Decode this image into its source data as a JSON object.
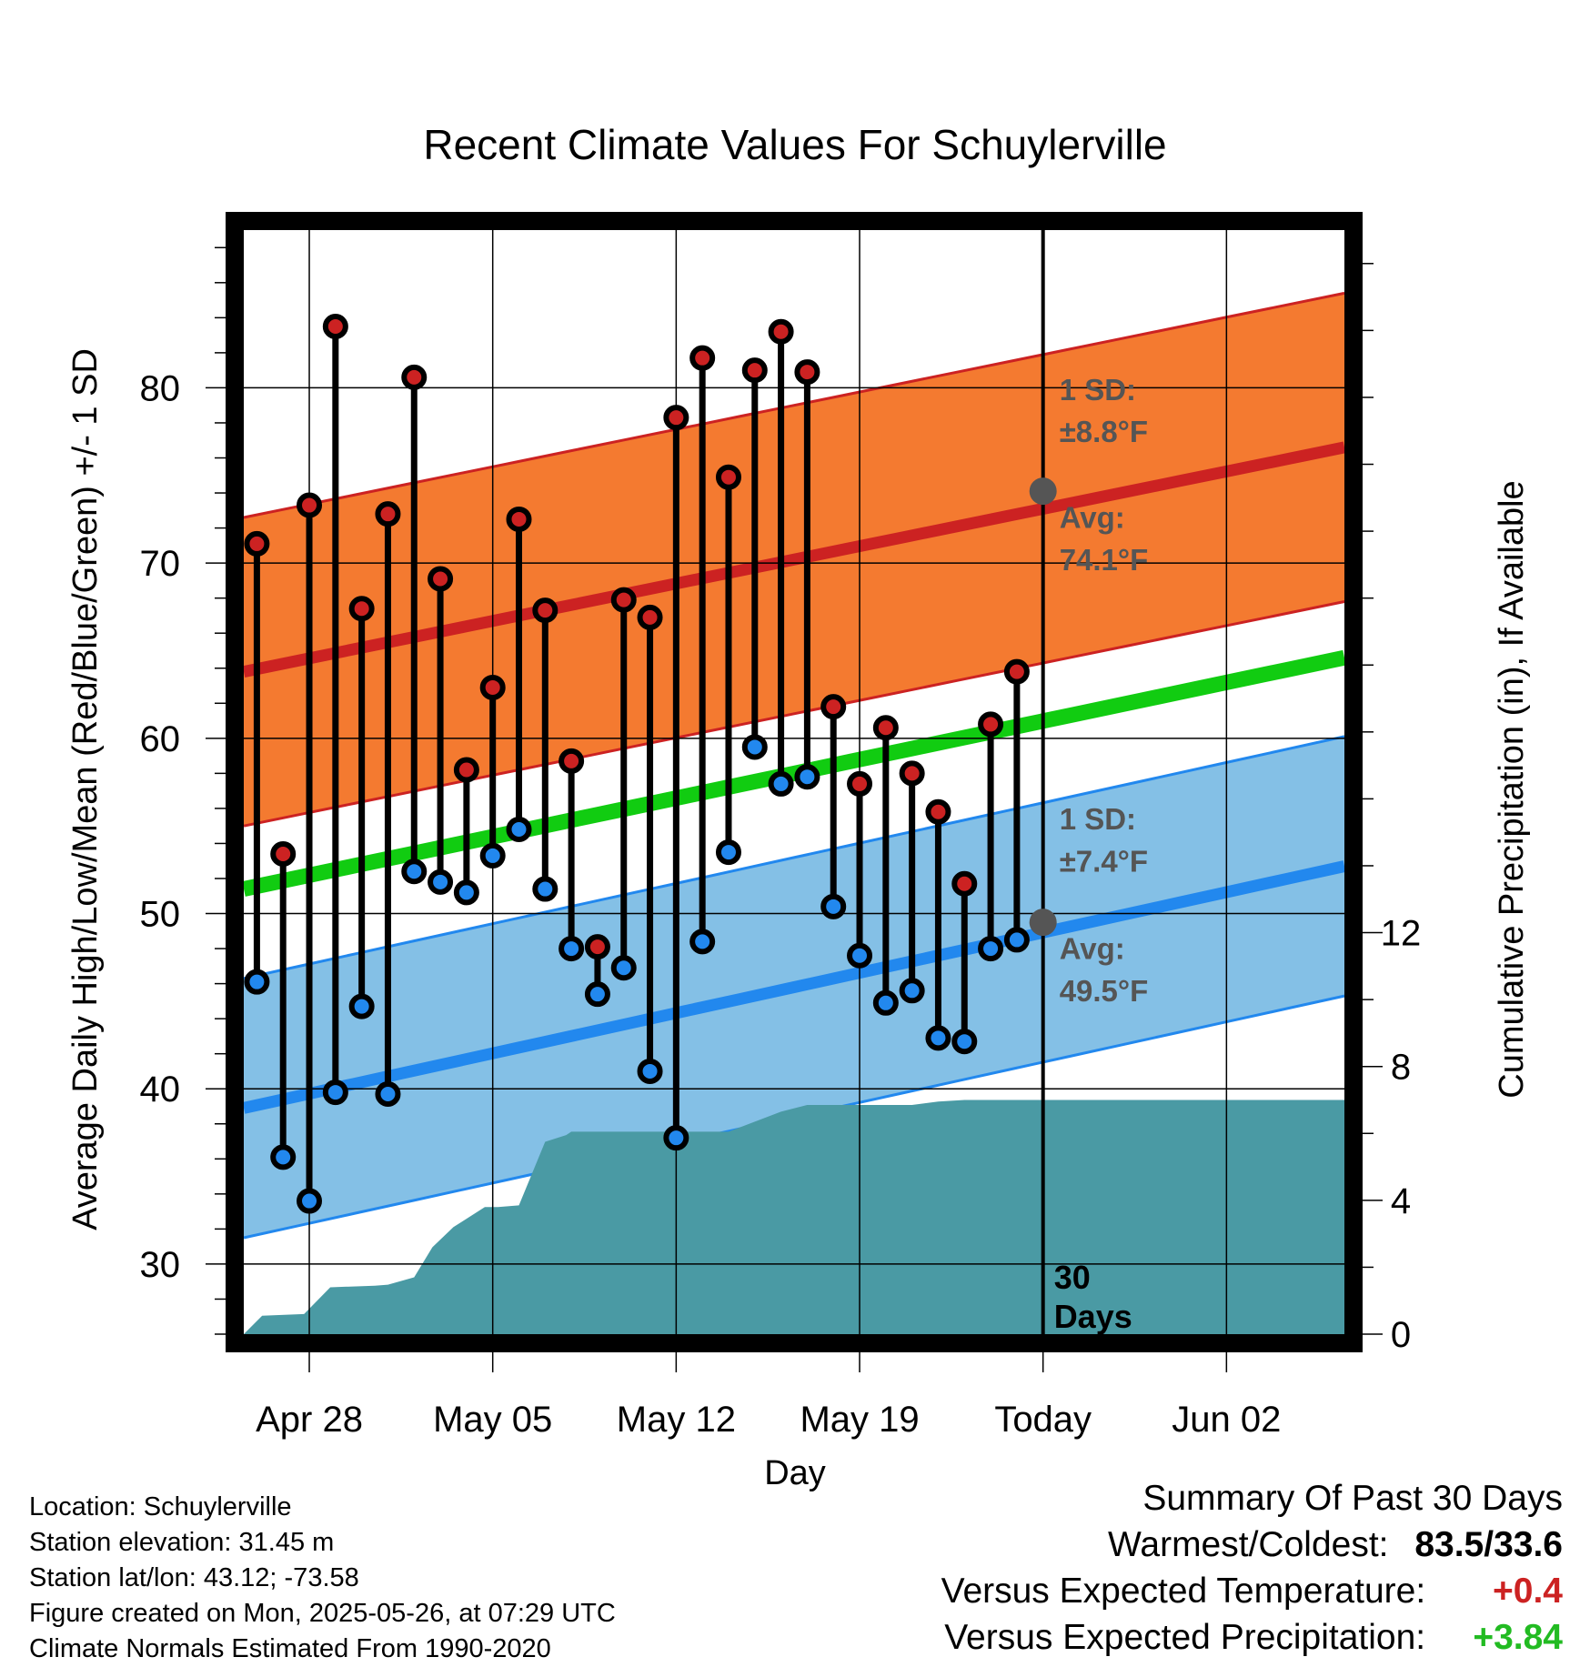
{
  "chart_data": {
    "type": "line",
    "title": "Recent Climate Values For Schuylerville",
    "xlabel": "Day",
    "ylabel_left": "Average Daily High/Low/Mean (Red/Blue/Green) +/- 1 SD",
    "ylabel_right": "Cumulative Precipitation (in), If Available",
    "x_range": [
      -2.5,
      39.5
    ],
    "x_ticks": [
      {
        "x": 0,
        "label": "Apr 28"
      },
      {
        "x": 7,
        "label": "May 05"
      },
      {
        "x": 14,
        "label": "May 12"
      },
      {
        "x": 21,
        "label": "May 19"
      },
      {
        "x": 28,
        "label": "Today"
      },
      {
        "x": 35,
        "label": "Jun 02"
      }
    ],
    "x_note": "x values are days relative to Apr 28",
    "ylim_left": [
      26,
      89
    ],
    "y_ticks_left": [
      30,
      40,
      50,
      60,
      70,
      80
    ],
    "ylim_right": [
      0,
      33
    ],
    "y_ticks_right": [
      0,
      4,
      8,
      12
    ],
    "grid": true,
    "today_x": 28,
    "today_label": [
      "30",
      "Days"
    ],
    "high_avg_line": {
      "x": [
        -2.5,
        39.5
      ],
      "y": [
        63.8,
        76.6
      ]
    },
    "high_sd": 8.8,
    "low_avg_line": {
      "x": [
        -2.5,
        39.5
      ],
      "y": [
        38.9,
        52.7
      ]
    },
    "low_sd": 7.4,
    "mean_line": {
      "x": [
        -2.5,
        39.5
      ],
      "y": [
        51.4,
        64.6
      ]
    },
    "annotations": {
      "high": {
        "sd_line1": "1 SD:",
        "sd_line2": "±8.8°F",
        "avg_line1": "Avg:",
        "avg_line2": "74.1°F",
        "avg_value": 74.1
      },
      "low": {
        "sd_line1": "1 SD:",
        "sd_line2": "±7.4°F",
        "avg_line1": "Avg:",
        "avg_line2": "49.5°F",
        "avg_value": 49.5
      }
    },
    "series": [
      {
        "name": "High",
        "color": "#cc2222",
        "x": [
          -2,
          -1,
          0,
          1,
          2,
          3,
          4,
          5,
          6,
          7,
          8,
          9,
          10,
          11,
          12,
          13,
          14,
          15,
          16,
          17,
          18,
          19,
          20,
          21,
          22,
          23,
          24,
          25,
          26,
          27
        ],
        "values": [
          71.1,
          53.4,
          73.3,
          83.5,
          67.4,
          72.8,
          80.6,
          69.1,
          58.2,
          62.9,
          72.5,
          67.3,
          58.7,
          48.1,
          67.9,
          66.9,
          78.3,
          81.7,
          74.9,
          81.0,
          83.2,
          80.9,
          61.8,
          57.4,
          60.6,
          58.0,
          55.8,
          51.7,
          60.8,
          63.8
        ]
      },
      {
        "name": "Low",
        "color": "#2288ee",
        "x": [
          -2,
          -1,
          0,
          1,
          2,
          3,
          4,
          5,
          6,
          7,
          8,
          9,
          10,
          11,
          12,
          13,
          14,
          15,
          16,
          17,
          18,
          19,
          20,
          21,
          22,
          23,
          24,
          25,
          26,
          27
        ],
        "values": [
          46.1,
          36.1,
          33.6,
          39.8,
          44.7,
          39.7,
          52.4,
          51.8,
          51.2,
          53.3,
          54.8,
          51.4,
          48.0,
          45.4,
          46.9,
          41.0,
          37.2,
          48.4,
          53.5,
          59.5,
          57.4,
          57.8,
          50.4,
          47.6,
          44.9,
          45.6,
          42.9,
          42.7,
          48.0,
          48.5
        ]
      },
      {
        "name": "Cumulative Precipitation",
        "color": "#4a9aa4",
        "x": [
          -2.5,
          -1.8,
          -0.2,
          0.8,
          2.5,
          3.0,
          4.0,
          4.7,
          5.5,
          6.7,
          7.2,
          8.0,
          9.0,
          9.8,
          10.0,
          10.5,
          11.0,
          14.0,
          15.0,
          16.0,
          17.0,
          18.0,
          19.0,
          20.0,
          21.0,
          23.0,
          24.0,
          25.0,
          39.5
        ],
        "values": [
          0.0,
          0.55,
          0.6,
          1.4,
          1.45,
          1.48,
          1.7,
          2.6,
          3.2,
          3.8,
          3.8,
          3.85,
          5.75,
          5.95,
          6.05,
          6.05,
          6.05,
          6.05,
          6.05,
          6.05,
          6.35,
          6.65,
          6.85,
          6.85,
          6.85,
          6.85,
          6.95,
          7.0,
          7.0
        ]
      }
    ],
    "colors": {
      "high_band": "#f47a30",
      "high_line": "#cc2222",
      "low_band": "#84c0e6",
      "low_line": "#2288ee",
      "mean": "#11cc11",
      "precip": "#4a9aa4"
    }
  },
  "footer": {
    "location": "Location: Schuylerville",
    "elevation": "Station elevation: 31.45 m",
    "latlon": "Station lat/lon: 43.12; -73.58",
    "created": "Figure created on Mon, 2025-05-26, at 07:29 UTC",
    "normals": "Climate Normals Estimated From 1990-2020"
  },
  "summary": {
    "heading": "Summary Of Past 30 Days",
    "warmest_label": "Warmest/Coldest:",
    "warmest_value": "83.5/33.6",
    "temp_label": "Versus Expected Temperature:",
    "temp_value": "+0.4",
    "temp_color": "#cc2222",
    "precip_label": "Versus Expected Precipitation:",
    "precip_value": "+3.84",
    "precip_color": "#22bb22"
  }
}
